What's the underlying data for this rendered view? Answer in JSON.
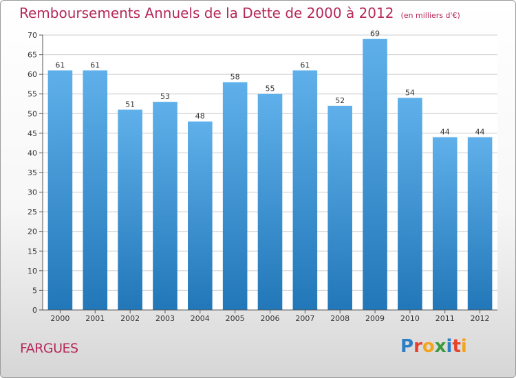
{
  "title": "Remboursements Annuels de la Dette de 2000 à 2012",
  "subtitle": "(en milliers d'€)",
  "commune": "FARGUES",
  "logo": {
    "text": "Proxiti",
    "letters": [
      {
        "char": "P",
        "color": "#2a7fc6"
      },
      {
        "char": "r",
        "color": "#e8412c"
      },
      {
        "char": "o",
        "color": "#f2a41d"
      },
      {
        "char": "x",
        "color": "#3a9a3c"
      },
      {
        "char": "i",
        "color": "#2a7fc6"
      },
      {
        "char": "t",
        "color": "#e8412c"
      },
      {
        "char": "i",
        "color": "#f2a41d"
      }
    ]
  },
  "colors": {
    "bar_top": "#5fb0ea",
    "bar_bottom": "#2277b8",
    "title": "#b5285a",
    "grid": "#cccccc"
  },
  "chart_data": {
    "type": "bar",
    "categories": [
      "2000",
      "2001",
      "2002",
      "2003",
      "2004",
      "2005",
      "2006",
      "2007",
      "2008",
      "2009",
      "2010",
      "2011",
      "2012"
    ],
    "values": [
      61,
      61,
      51,
      53,
      48,
      58,
      55,
      61,
      52,
      69,
      54,
      44,
      44
    ],
    "ylim": [
      0,
      70
    ],
    "yticks": [
      0,
      5,
      10,
      15,
      20,
      25,
      30,
      35,
      40,
      45,
      50,
      55,
      60,
      65,
      70
    ],
    "grid": true
  }
}
